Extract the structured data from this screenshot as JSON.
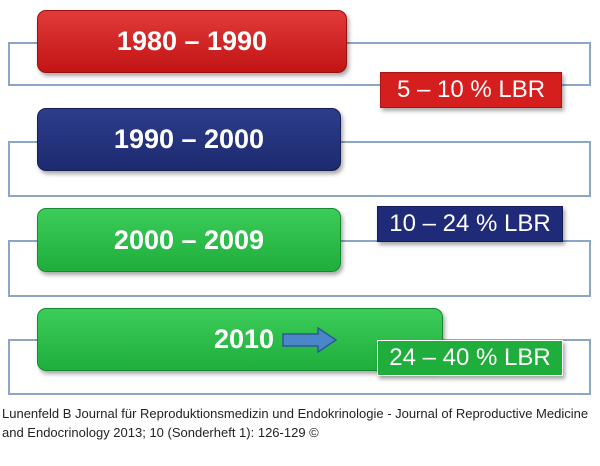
{
  "periods": [
    {
      "label": "1980 – 1990",
      "color": "#d51e1e"
    },
    {
      "label": "1990 – 2000",
      "color": "#1f2a78"
    },
    {
      "label": "2000 – 2009",
      "color": "#2bbf4a"
    },
    {
      "label": "2010",
      "color": "#2bbf4a"
    }
  ],
  "rates": [
    {
      "label": "5 – 10 % LBR",
      "color": "#d51e1e"
    },
    {
      "label": "10 – 24 % LBR",
      "color": "#1f2a78"
    },
    {
      "label": "24 – 40 % LBR",
      "color": "#1fae3c"
    }
  ],
  "arrow_icon": "right-arrow-icon",
  "frame_color": "#8aa6c8",
  "caption": "Lunenfeld B Journal für Reproduktionsmedizin und Endokrinologie - Journal of Reproductive Medicine and Endocrinology 2013; 10 (Sonderheft 1): 126-129 ©"
}
